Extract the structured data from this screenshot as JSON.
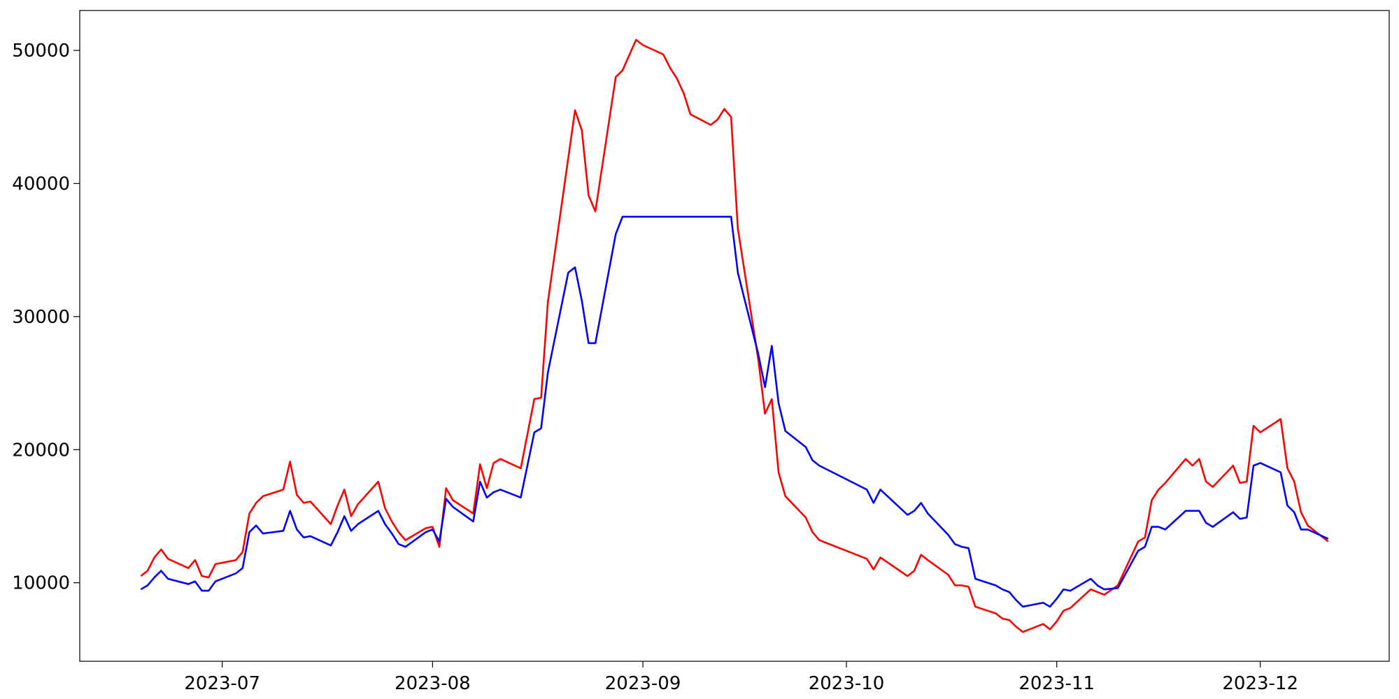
{
  "chart_data": {
    "type": "line",
    "x": [
      19527,
      19528,
      19529,
      19530,
      19531,
      19534,
      19535,
      19536,
      19537,
      19538,
      19541,
      19542,
      19543,
      19544,
      19545,
      19548,
      19549,
      19550,
      19551,
      19552,
      19555,
      19556,
      19557,
      19558,
      19559,
      19562,
      19563,
      19564,
      19565,
      19566,
      19569,
      19570,
      19571,
      19572,
      19573,
      19576,
      19577,
      19578,
      19579,
      19580,
      19583,
      19585,
      19586,
      19587,
      19590,
      19591,
      19592,
      19593,
      19594,
      19597,
      19598,
      19600,
      19601,
      19604,
      19605,
      19606,
      19607,
      19608,
      19611,
      19612,
      19613,
      19614,
      19615,
      19618,
      19619,
      19620,
      19621,
      19622,
      19625,
      19626,
      19627,
      19634,
      19635,
      19636,
      19640,
      19641,
      19642,
      19643,
      19646,
      19647,
      19648,
      19649,
      19650,
      19653,
      19654,
      19655,
      19656,
      19657,
      19660,
      19661,
      19662,
      19663,
      19664,
      19667,
      19668,
      19669,
      19671,
      19674,
      19675,
      19676,
      19677,
      19678,
      19681,
      19682,
      19683,
      19684,
      19685,
      19688,
      19689,
      19690,
      19691,
      19692,
      19695,
      19696,
      19697,
      19698,
      19699,
      19702
    ],
    "series": [
      {
        "color": "#ff0000",
        "values": [
          10500,
          10900,
          11900,
          12500,
          11800,
          11100,
          11700,
          10500,
          10400,
          11400,
          11700,
          12300,
          15200,
          16000,
          16500,
          17000,
          19100,
          16600,
          16000,
          16100,
          14400,
          15800,
          17000,
          15000,
          15900,
          17600,
          15600,
          14600,
          13800,
          13200,
          14100,
          14200,
          12700,
          17100,
          16200,
          15200,
          18900,
          17100,
          19000,
          19300,
          18600,
          23800,
          23900,
          31100,
          41900,
          45500,
          44000,
          39100,
          37900,
          48000,
          48500,
          50800,
          50400,
          49700,
          48700,
          47900,
          46800,
          45200,
          44400,
          44800,
          45600,
          45000,
          36600,
          26800,
          22700,
          23800,
          18300,
          16500,
          14900,
          13800,
          13200,
          11800,
          11000,
          11900,
          10500,
          10900,
          12100,
          11700,
          10600,
          9800,
          9800,
          9700,
          8200,
          7700,
          7300,
          7200,
          6700,
          6300,
          6900,
          6500,
          7100,
          7900,
          8100,
          9500,
          9300,
          9100,
          9800,
          13100,
          13400,
          16200,
          17000,
          17500,
          19300,
          18800,
          19300,
          17600,
          17200,
          18800,
          17500,
          17600,
          21800,
          21300,
          22300,
          18600,
          17600,
          15300,
          14300,
          13100
        ]
      },
      {
        "color": "#0000ff",
        "values": [
          9500,
          9800,
          10400,
          10900,
          10300,
          9900,
          10100,
          9400,
          9400,
          10100,
          10700,
          11100,
          13800,
          14300,
          13700,
          13900,
          15400,
          14000,
          13400,
          13500,
          12800,
          13800,
          15000,
          13900,
          14400,
          15400,
          14400,
          13700,
          12900,
          12700,
          13800,
          14000,
          13100,
          16300,
          15700,
          14600,
          17600,
          16400,
          16800,
          17000,
          16400,
          21300,
          21600,
          25800,
          33300,
          33700,
          31200,
          28000,
          28000,
          36200,
          37500,
          37500,
          37500,
          37500,
          37500,
          37500,
          37500,
          37500,
          37500,
          37500,
          37500,
          37500,
          33300,
          27200,
          24700,
          27800,
          23500,
          21400,
          20200,
          19200,
          18800,
          17000,
          16000,
          17000,
          15100,
          15400,
          16000,
          15200,
          13600,
          12900,
          12700,
          12600,
          10300,
          9800,
          9500,
          9300,
          8700,
          8200,
          8500,
          8200,
          8800,
          9500,
          9400,
          10300,
          9800,
          9500,
          9600,
          12400,
          12700,
          14200,
          14200,
          14000,
          15400,
          15400,
          15400,
          14500,
          14200,
          15300,
          14800,
          14900,
          18800,
          19000,
          18300,
          15800,
          15300,
          14000,
          14000,
          13300
        ]
      }
    ],
    "xlim": [
      19518,
      19711
    ],
    "xticks": [
      {
        "value": 19539,
        "label": "2023-07"
      },
      {
        "value": 19570,
        "label": "2023-08"
      },
      {
        "value": 19601,
        "label": "2023-09"
      },
      {
        "value": 19631,
        "label": "2023-10"
      },
      {
        "value": 19662,
        "label": "2023-11"
      },
      {
        "value": 19692,
        "label": "2023-12"
      }
    ],
    "ylim": [
      4100,
      53000
    ],
    "yticks": [
      10000,
      20000,
      30000,
      40000,
      50000
    ],
    "grid": false
  }
}
